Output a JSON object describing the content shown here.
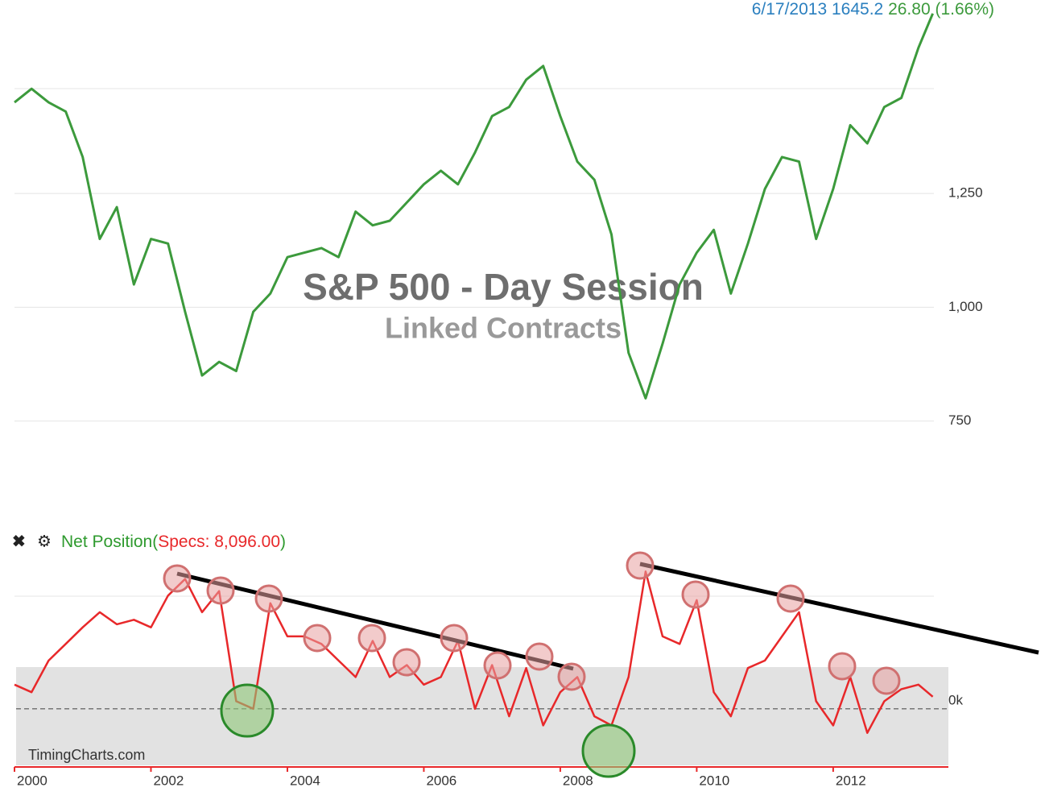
{
  "header": {
    "date": "6/17/2013",
    "price": "1645.2",
    "change": "26.80 (1.66%)"
  },
  "chart_data": [
    {
      "type": "line",
      "title": "S&P 500 - Day Session",
      "subtitle": "Linked Contracts",
      "color": "#3c9a3c",
      "x": [
        2000,
        2000.25,
        2000.5,
        2000.75,
        2001,
        2001.25,
        2001.5,
        2001.75,
        2002,
        2002.25,
        2002.5,
        2002.75,
        2003,
        2003.25,
        2003.5,
        2003.75,
        2004,
        2004.25,
        2004.5,
        2004.75,
        2005,
        2005.25,
        2005.5,
        2005.75,
        2006,
        2006.25,
        2006.5,
        2006.75,
        2007,
        2007.25,
        2007.5,
        2007.75,
        2008,
        2008.25,
        2008.5,
        2008.75,
        2009,
        2009.25,
        2009.5,
        2009.75,
        2010,
        2010.25,
        2010.5,
        2010.75,
        2011,
        2011.25,
        2011.5,
        2011.75,
        2012,
        2012.25,
        2012.5,
        2012.75,
        2013,
        2013.25,
        2013.46
      ],
      "values": [
        1450,
        1480,
        1450,
        1430,
        1330,
        1150,
        1220,
        1050,
        1150,
        1140,
        990,
        850,
        880,
        860,
        990,
        1030,
        1110,
        1120,
        1130,
        1110,
        1210,
        1180,
        1190,
        1230,
        1270,
        1300,
        1270,
        1340,
        1420,
        1440,
        1500,
        1530,
        1420,
        1320,
        1280,
        1160,
        900,
        800,
        920,
        1050,
        1120,
        1170,
        1030,
        1140,
        1260,
        1330,
        1320,
        1150,
        1260,
        1400,
        1360,
        1440,
        1460,
        1570,
        1645.2
      ],
      "xlim": [
        2000,
        2013.5
      ],
      "ylim": [
        613,
        1675
      ],
      "yticks": [
        {
          "value": 750,
          "label": "750"
        },
        {
          "value": 1000,
          "label": "1,000"
        },
        {
          "value": 1250,
          "label": "1,250"
        }
      ],
      "grid": true
    },
    {
      "type": "line",
      "indicator_label": "Net Position(",
      "indicator_value": "Specs: 8,096.00",
      "indicator_close": ")",
      "watermark": "TimingCharts.com",
      "color": "#e8282a",
      "x": [
        2000,
        2000.25,
        2000.5,
        2000.75,
        2001,
        2001.25,
        2001.5,
        2001.75,
        2002,
        2002.25,
        2002.5,
        2002.75,
        2003,
        2003.25,
        2003.5,
        2003.75,
        2004,
        2004.25,
        2004.5,
        2004.75,
        2005,
        2005.25,
        2005.5,
        2005.75,
        2006,
        2006.25,
        2006.5,
        2006.75,
        2007,
        2007.25,
        2007.5,
        2007.75,
        2008,
        2008.25,
        2008.5,
        2008.75,
        2009,
        2009.25,
        2009.5,
        2009.75,
        2010,
        2010.25,
        2010.5,
        2010.75,
        2011,
        2011.25,
        2011.5,
        2011.75,
        2012,
        2012.25,
        2012.5,
        2012.75,
        2013,
        2013.25,
        2013.46
      ],
      "values": [
        16,
        11,
        32,
        43,
        54,
        64,
        56,
        59,
        54,
        75,
        86,
        64,
        78,
        5,
        0,
        70,
        48,
        48,
        43,
        32,
        21,
        45,
        21,
        29,
        16,
        21,
        45,
        0,
        29,
        -5,
        27,
        -11,
        11,
        21,
        -5,
        -11,
        21,
        91,
        48,
        43,
        72,
        11,
        -5,
        27,
        32,
        48,
        64,
        5,
        -11,
        21,
        -16,
        5,
        13,
        16,
        8
      ],
      "xlim": [
        2000,
        2013.5
      ],
      "xticks": [
        2000,
        2002,
        2004,
        2006,
        2008,
        2010,
        2012
      ],
      "ylim": [
        -37.5,
        96
      ],
      "yticks": [
        {
          "value": 0,
          "label": "0k"
        }
      ]
    }
  ]
}
